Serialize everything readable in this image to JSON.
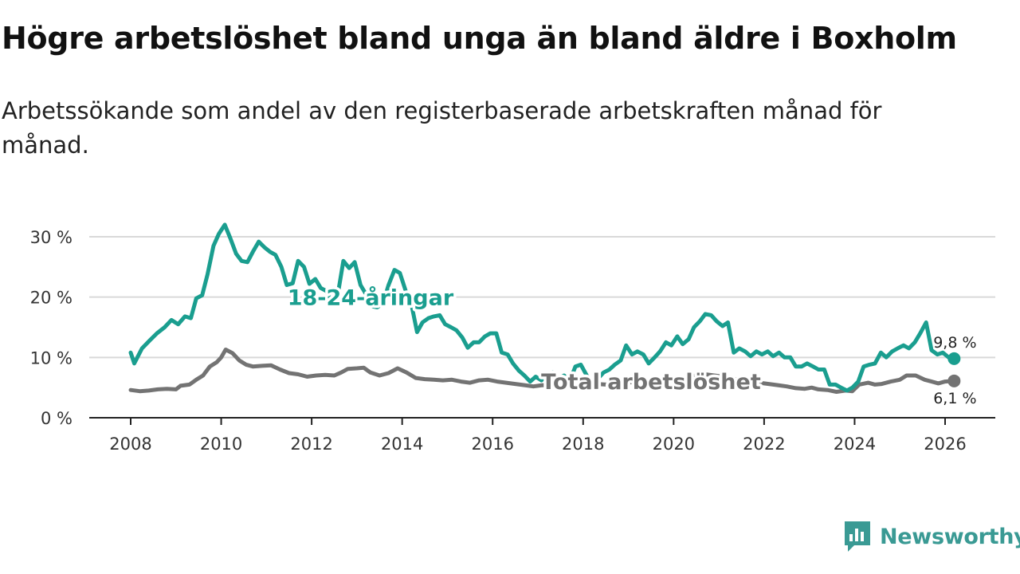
{
  "title": "Högre arbetslöshet bland unga än bland äldre i Boxholm",
  "subtitle": "Arbetssökande som andel av den registerbaserade arbetskraften månad för månad.",
  "brand": {
    "name": "Newsworthy",
    "icon": "newsworthy-logo-icon",
    "color": "#3a9a94"
  },
  "colors": {
    "youth": "#1a9e8f",
    "total": "#737373",
    "grid": "#d9d9d9",
    "axis": "#222222"
  },
  "chart_data": {
    "type": "line",
    "title": "Högre arbetslöshet bland unga än bland äldre i Boxholm",
    "xlabel": "",
    "ylabel": "",
    "xlim": [
      2007.7,
      2027.1
    ],
    "ylim": [
      0,
      30
    ],
    "grid": true,
    "x_ticks": [
      2008,
      2010,
      2012,
      2014,
      2016,
      2018,
      2020,
      2022,
      2024,
      2026
    ],
    "y_ticks": [
      {
        "value": 0,
        "label": "0 %"
      },
      {
        "value": 10,
        "label": "10 %"
      },
      {
        "value": 20,
        "label": "20 %"
      },
      {
        "value": 30,
        "label": "30 %"
      }
    ],
    "series": [
      {
        "name": "18-24-åringar",
        "label_at": [
          2013.3,
          20
        ],
        "end_label": "9,8 %",
        "end_value": 9.8,
        "points": [
          [
            2008.0,
            10.8
          ],
          [
            2008.08,
            9.0
          ],
          [
            2008.25,
            11.5
          ],
          [
            2008.42,
            12.8
          ],
          [
            2008.58,
            14.0
          ],
          [
            2008.75,
            15.0
          ],
          [
            2008.9,
            16.2
          ],
          [
            2009.05,
            15.5
          ],
          [
            2009.2,
            16.8
          ],
          [
            2009.33,
            16.5
          ],
          [
            2009.45,
            19.8
          ],
          [
            2009.58,
            20.3
          ],
          [
            2009.7,
            23.8
          ],
          [
            2009.83,
            28.5
          ],
          [
            2009.95,
            30.5
          ],
          [
            2010.08,
            32.0
          ],
          [
            2010.2,
            29.8
          ],
          [
            2010.33,
            27.2
          ],
          [
            2010.45,
            26.0
          ],
          [
            2010.58,
            25.8
          ],
          [
            2010.7,
            27.5
          ],
          [
            2010.83,
            29.2
          ],
          [
            2010.95,
            28.3
          ],
          [
            2011.08,
            27.5
          ],
          [
            2011.2,
            27.0
          ],
          [
            2011.33,
            25.0
          ],
          [
            2011.45,
            22.0
          ],
          [
            2011.58,
            22.3
          ],
          [
            2011.7,
            26.0
          ],
          [
            2011.83,
            25.0
          ],
          [
            2011.95,
            22.2
          ],
          [
            2012.08,
            23.0
          ],
          [
            2012.2,
            21.5
          ],
          [
            2012.33,
            21.0
          ],
          [
            2012.45,
            19.0
          ],
          [
            2012.58,
            20.5
          ],
          [
            2012.7,
            26.0
          ],
          [
            2012.83,
            24.8
          ],
          [
            2012.95,
            25.8
          ],
          [
            2013.08,
            22.0
          ],
          [
            2013.2,
            20.5
          ],
          [
            2013.33,
            18.5
          ],
          [
            2013.45,
            18.3
          ],
          [
            2013.58,
            19.0
          ],
          [
            2013.7,
            22.0
          ],
          [
            2013.83,
            24.5
          ],
          [
            2013.95,
            24.0
          ],
          [
            2014.08,
            21.0
          ],
          [
            2014.2,
            19.0
          ],
          [
            2014.33,
            14.2
          ],
          [
            2014.45,
            15.8
          ],
          [
            2014.58,
            16.5
          ],
          [
            2014.7,
            16.8
          ],
          [
            2014.83,
            17.0
          ],
          [
            2014.95,
            15.5
          ],
          [
            2015.08,
            15.0
          ],
          [
            2015.2,
            14.5
          ],
          [
            2015.33,
            13.3
          ],
          [
            2015.45,
            11.6
          ],
          [
            2015.58,
            12.5
          ],
          [
            2015.7,
            12.5
          ],
          [
            2015.83,
            13.5
          ],
          [
            2015.95,
            14.0
          ],
          [
            2016.08,
            14.0
          ],
          [
            2016.2,
            10.8
          ],
          [
            2016.33,
            10.5
          ],
          [
            2016.45,
            9.0
          ],
          [
            2016.58,
            7.8
          ],
          [
            2016.7,
            7.0
          ],
          [
            2016.83,
            6.0
          ],
          [
            2016.95,
            6.8
          ],
          [
            2017.08,
            6.2
          ],
          [
            2017.2,
            7.2
          ],
          [
            2017.33,
            7.5
          ],
          [
            2017.45,
            6.5
          ],
          [
            2017.58,
            7.0
          ],
          [
            2017.7,
            6.0
          ],
          [
            2017.83,
            8.5
          ],
          [
            2017.95,
            8.8
          ],
          [
            2018.08,
            7.0
          ],
          [
            2018.2,
            6.0
          ],
          [
            2018.33,
            6.5
          ],
          [
            2018.45,
            7.5
          ],
          [
            2018.58,
            8.0
          ],
          [
            2018.7,
            8.8
          ],
          [
            2018.83,
            9.5
          ],
          [
            2018.95,
            12.0
          ],
          [
            2019.08,
            10.5
          ],
          [
            2019.2,
            11.0
          ],
          [
            2019.33,
            10.5
          ],
          [
            2019.45,
            9.0
          ],
          [
            2019.58,
            10.0
          ],
          [
            2019.7,
            11.0
          ],
          [
            2019.83,
            12.5
          ],
          [
            2019.95,
            12.0
          ],
          [
            2020.08,
            13.5
          ],
          [
            2020.2,
            12.2
          ],
          [
            2020.33,
            13.0
          ],
          [
            2020.45,
            15.0
          ],
          [
            2020.58,
            16.0
          ],
          [
            2020.7,
            17.2
          ],
          [
            2020.83,
            17.0
          ],
          [
            2020.95,
            16.0
          ],
          [
            2021.08,
            15.2
          ],
          [
            2021.2,
            15.8
          ],
          [
            2021.33,
            10.8
          ],
          [
            2021.45,
            11.5
          ],
          [
            2021.58,
            11.0
          ],
          [
            2021.7,
            10.2
          ],
          [
            2021.83,
            11.0
          ],
          [
            2021.95,
            10.5
          ],
          [
            2022.08,
            11.0
          ],
          [
            2022.2,
            10.2
          ],
          [
            2022.33,
            10.8
          ],
          [
            2022.45,
            10.0
          ],
          [
            2022.58,
            10.0
          ],
          [
            2022.7,
            8.5
          ],
          [
            2022.83,
            8.5
          ],
          [
            2022.95,
            9.0
          ],
          [
            2023.08,
            8.5
          ],
          [
            2023.2,
            8.0
          ],
          [
            2023.33,
            8.0
          ],
          [
            2023.45,
            5.5
          ],
          [
            2023.58,
            5.5
          ],
          [
            2023.7,
            5.0
          ],
          [
            2023.83,
            4.5
          ],
          [
            2023.95,
            5.0
          ],
          [
            2024.08,
            6.0
          ],
          [
            2024.2,
            8.5
          ],
          [
            2024.33,
            8.8
          ],
          [
            2024.45,
            9.0
          ],
          [
            2024.58,
            10.8
          ],
          [
            2024.7,
            10.0
          ],
          [
            2024.83,
            11.0
          ],
          [
            2024.95,
            11.5
          ],
          [
            2025.08,
            12.0
          ],
          [
            2025.2,
            11.5
          ],
          [
            2025.33,
            12.5
          ],
          [
            2025.45,
            14.0
          ],
          [
            2025.58,
            15.8
          ],
          [
            2025.7,
            11.2
          ],
          [
            2025.83,
            10.5
          ],
          [
            2025.95,
            10.8
          ],
          [
            2026.08,
            10.0
          ],
          [
            2026.2,
            9.8
          ]
        ]
      },
      {
        "name": "Total arbetslöshet",
        "label_at": [
          2019.5,
          6.1
        ],
        "end_label": "6,1 %",
        "end_value": 6.1,
        "points": [
          [
            2008.0,
            4.6
          ],
          [
            2008.2,
            4.4
          ],
          [
            2008.4,
            4.5
          ],
          [
            2008.6,
            4.7
          ],
          [
            2008.8,
            4.8
          ],
          [
            2009.0,
            4.7
          ],
          [
            2009.1,
            5.3
          ],
          [
            2009.3,
            5.5
          ],
          [
            2009.45,
            6.3
          ],
          [
            2009.6,
            7.0
          ],
          [
            2009.75,
            8.5
          ],
          [
            2009.9,
            9.2
          ],
          [
            2010.0,
            10.0
          ],
          [
            2010.1,
            11.3
          ],
          [
            2010.25,
            10.7
          ],
          [
            2010.4,
            9.5
          ],
          [
            2010.55,
            8.8
          ],
          [
            2010.7,
            8.5
          ],
          [
            2010.9,
            8.6
          ],
          [
            2011.1,
            8.7
          ],
          [
            2011.3,
            8.0
          ],
          [
            2011.5,
            7.4
          ],
          [
            2011.7,
            7.2
          ],
          [
            2011.9,
            6.8
          ],
          [
            2012.1,
            7.0
          ],
          [
            2012.3,
            7.1
          ],
          [
            2012.5,
            7.0
          ],
          [
            2012.65,
            7.5
          ],
          [
            2012.8,
            8.1
          ],
          [
            2013.0,
            8.2
          ],
          [
            2013.15,
            8.3
          ],
          [
            2013.3,
            7.5
          ],
          [
            2013.5,
            7.0
          ],
          [
            2013.7,
            7.4
          ],
          [
            2013.9,
            8.2
          ],
          [
            2014.1,
            7.5
          ],
          [
            2014.3,
            6.6
          ],
          [
            2014.5,
            6.4
          ],
          [
            2014.7,
            6.3
          ],
          [
            2014.9,
            6.2
          ],
          [
            2015.1,
            6.3
          ],
          [
            2015.3,
            6.0
          ],
          [
            2015.5,
            5.8
          ],
          [
            2015.7,
            6.2
          ],
          [
            2015.9,
            6.3
          ],
          [
            2016.1,
            6.0
          ],
          [
            2016.3,
            5.8
          ],
          [
            2016.5,
            5.6
          ],
          [
            2016.7,
            5.4
          ],
          [
            2016.9,
            5.2
          ],
          [
            2017.1,
            5.4
          ],
          [
            2017.3,
            5.3
          ],
          [
            2017.5,
            5.2
          ],
          [
            2017.7,
            5.2
          ],
          [
            2017.9,
            5.3
          ],
          [
            2018.1,
            5.5
          ],
          [
            2018.3,
            5.6
          ],
          [
            2018.5,
            5.5
          ],
          [
            2018.7,
            5.7
          ],
          [
            2018.9,
            5.8
          ],
          [
            2019.1,
            5.9
          ],
          [
            2019.3,
            6.0
          ],
          [
            2019.5,
            6.1
          ],
          [
            2019.7,
            6.0
          ],
          [
            2019.9,
            6.2
          ],
          [
            2020.1,
            6.5
          ],
          [
            2020.3,
            6.8
          ],
          [
            2020.5,
            7.0
          ],
          [
            2020.7,
            7.2
          ],
          [
            2020.9,
            7.0
          ],
          [
            2021.1,
            6.8
          ],
          [
            2021.3,
            6.5
          ],
          [
            2021.5,
            6.2
          ],
          [
            2021.7,
            6.0
          ],
          [
            2021.9,
            5.8
          ],
          [
            2022.1,
            5.6
          ],
          [
            2022.3,
            5.4
          ],
          [
            2022.5,
            5.2
          ],
          [
            2022.7,
            4.9
          ],
          [
            2022.9,
            4.8
          ],
          [
            2023.05,
            5.0
          ],
          [
            2023.2,
            4.7
          ],
          [
            2023.4,
            4.6
          ],
          [
            2023.6,
            4.3
          ],
          [
            2023.8,
            4.5
          ],
          [
            2023.95,
            4.4
          ],
          [
            2024.1,
            5.5
          ],
          [
            2024.3,
            5.8
          ],
          [
            2024.45,
            5.5
          ],
          [
            2024.6,
            5.6
          ],
          [
            2024.8,
            6.0
          ],
          [
            2025.0,
            6.3
          ],
          [
            2025.15,
            7.0
          ],
          [
            2025.35,
            7.0
          ],
          [
            2025.55,
            6.3
          ],
          [
            2025.7,
            6.0
          ],
          [
            2025.85,
            5.7
          ],
          [
            2026.0,
            6.0
          ],
          [
            2026.2,
            6.1
          ]
        ]
      }
    ]
  }
}
